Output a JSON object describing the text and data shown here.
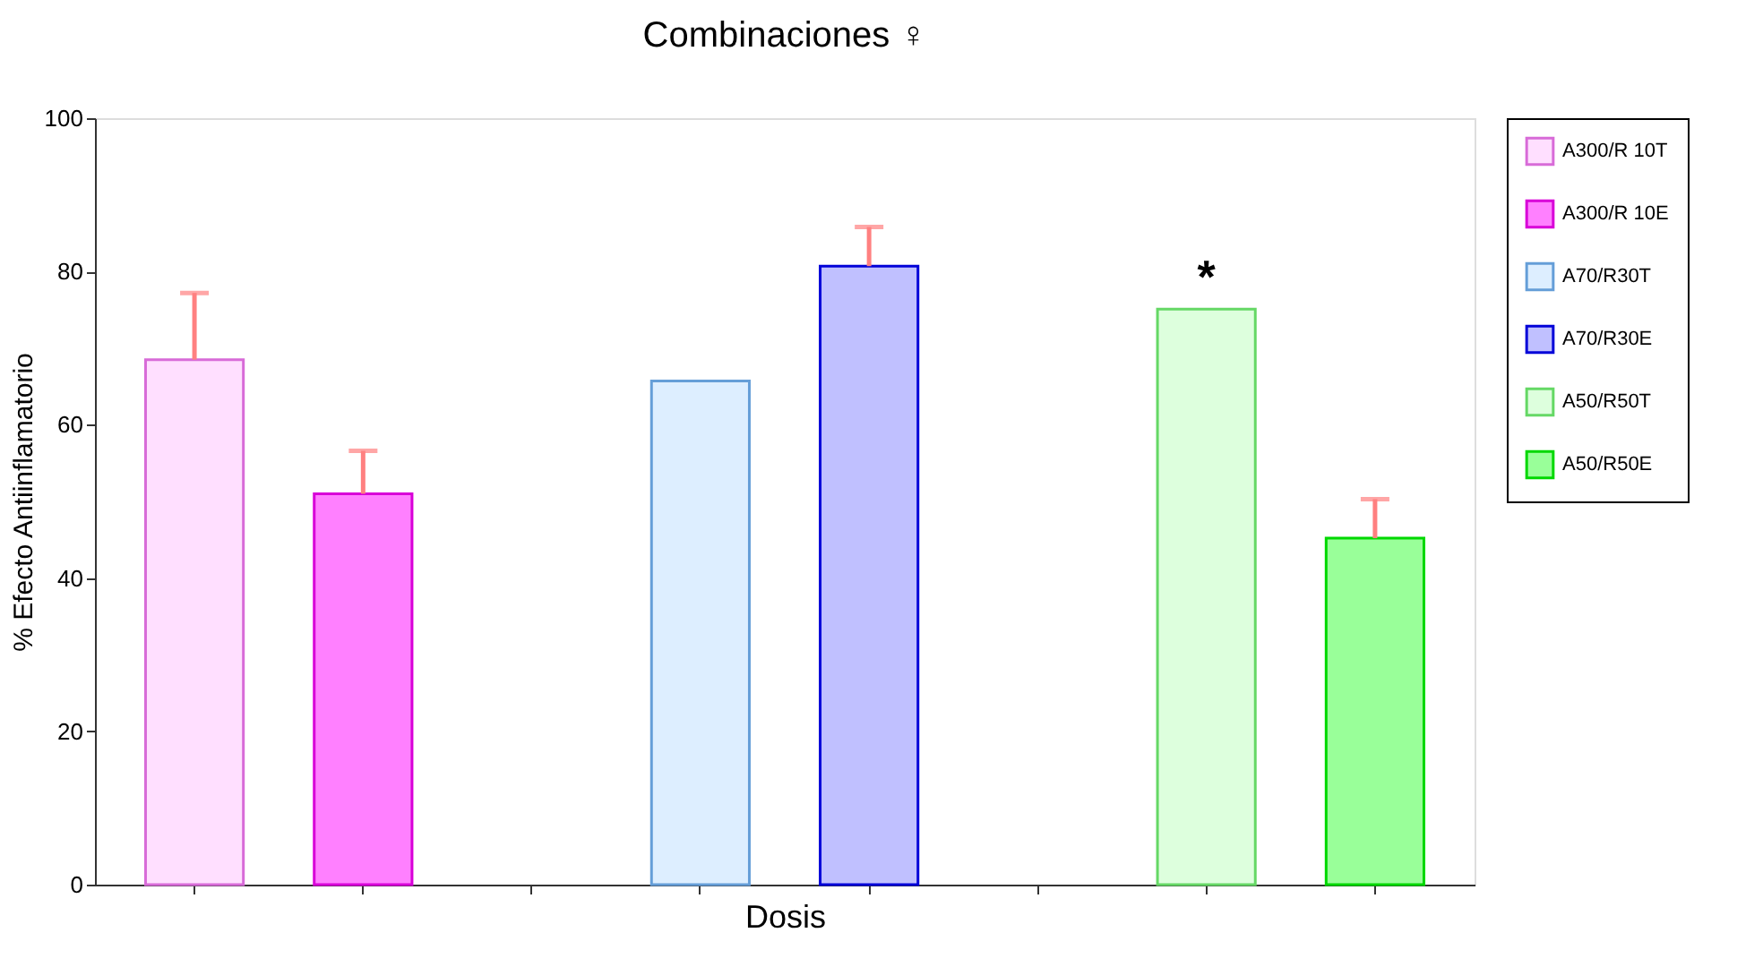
{
  "chart_data": {
    "type": "bar",
    "title": "Combinaciones ♀",
    "xlabel": "Dosis",
    "ylabel": "% Efecto Antiinflamatorio",
    "categories": [
      null,
      null,
      null,
      null,
      null,
      null,
      null,
      null
    ],
    "series": [
      {
        "name": "A300/R 10T",
        "color": "#ffdfff",
        "values": [
          68.5,
          null,
          null,
          null,
          null,
          null,
          null,
          null
        ],
        "errors": [
          [
            68.5,
            77.2
          ],
          null,
          null,
          null,
          null,
          null,
          null,
          null
        ]
      },
      {
        "name": "A300/R 10E",
        "color": "#ff80ff",
        "values": [
          null,
          51.0,
          null,
          null,
          null,
          null,
          null,
          null
        ],
        "errors": [
          null,
          [
            51.0,
            56.6
          ],
          null,
          null,
          null,
          null,
          null,
          null
        ]
      },
      {
        "name": "A70/R30T",
        "color": "#ddeeff",
        "values": [
          null,
          null,
          null,
          65.7,
          null,
          null,
          null,
          null
        ]
      },
      {
        "name": "A70/R30E",
        "color": "#c0c0ff",
        "values": [
          null,
          null,
          null,
          null,
          80.7,
          null,
          null,
          null
        ],
        "errors": [
          null,
          null,
          null,
          null,
          [
            80.7,
            85.8
          ],
          null,
          null,
          null
        ]
      },
      {
        "name": "A50/R50T",
        "color": "#ddffdd",
        "values": [
          null,
          null,
          null,
          null,
          null,
          null,
          75.1,
          null
        ]
      },
      {
        "name": "A50/R50E",
        "color": "#99ff99",
        "values": [
          null,
          null,
          null,
          null,
          null,
          null,
          null,
          45.2
        ],
        "errors": [
          null,
          null,
          null,
          null,
          null,
          null,
          null,
          [
            45.2,
            50.3
          ]
        ]
      }
    ],
    "annotations": [
      {
        "text": "*",
        "y": 75.1
      }
    ],
    "ylim": [
      0,
      100
    ],
    "yticks": [
      0,
      20,
      40,
      60,
      80,
      100
    ],
    "grid": false,
    "legend": "top right"
  }
}
